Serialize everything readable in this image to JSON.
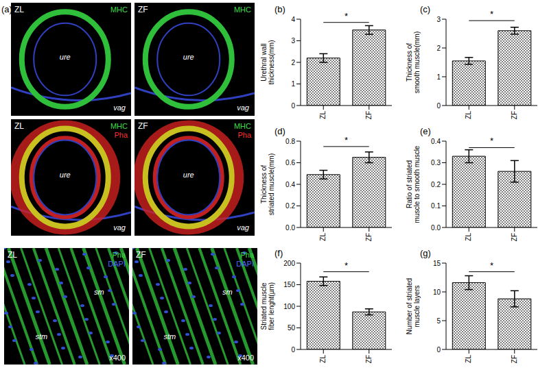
{
  "panel_a": {
    "label": "(a)",
    "images": [
      {
        "label": "ZL",
        "kind": "section",
        "stains": [
          {
            "text": "MHC",
            "color": "#3ddc4a"
          }
        ],
        "marks": [
          "ure",
          "vag"
        ]
      },
      {
        "label": "ZF",
        "kind": "section",
        "stains": [
          {
            "text": "MHC",
            "color": "#3ddc4a"
          }
        ],
        "marks": [
          "ure",
          "vag"
        ]
      },
      {
        "label": "ZL",
        "kind": "section_pha",
        "stains": [
          {
            "text": "MHC",
            "color": "#3ddc4a"
          },
          {
            "text": "Pha",
            "color": "#ff3030"
          }
        ],
        "marks": [
          "ure",
          "vag"
        ]
      },
      {
        "label": "ZF",
        "kind": "section_pha",
        "stains": [
          {
            "text": "MHC",
            "color": "#3ddc4a"
          },
          {
            "text": "Pha",
            "color": "#ff3030"
          }
        ],
        "marks": [
          "ure",
          "vag"
        ]
      },
      {
        "label": "ZL",
        "kind": "fibers",
        "stains": [
          {
            "text": "Pha",
            "color": "#3ddc4a"
          },
          {
            "text": "DAPI",
            "color": "#4a6cff"
          }
        ],
        "marks": [
          "sm",
          "stm",
          "x400"
        ]
      },
      {
        "label": "ZF",
        "kind": "fibers",
        "stains": [
          {
            "text": "Pha",
            "color": "#3ddc4a"
          },
          {
            "text": "DAPI",
            "color": "#4a6cff"
          }
        ],
        "marks": [
          "sm",
          "stm",
          "x400"
        ]
      }
    ]
  },
  "chart_data": [
    {
      "type": "bar",
      "title": "(b)",
      "y_label": "Urethral wall thickness(mm)",
      "categories": [
        "ZL",
        "ZF"
      ],
      "values": [
        2.2,
        3.5
      ],
      "errors": [
        0.2,
        0.2
      ],
      "color": "#808080",
      "ylim": [
        0,
        4
      ],
      "yticks": [
        0,
        1,
        2,
        3,
        4
      ],
      "annotations": [
        {
          "text": "*",
          "from": "ZL",
          "to": "ZF",
          "y": 3.85
        }
      ]
    },
    {
      "type": "bar",
      "title": "(c)",
      "y_label": "Thickness of smooth muscle(mm)",
      "categories": [
        "ZL",
        "ZF"
      ],
      "values": [
        1.55,
        2.6
      ],
      "errors": [
        0.12,
        0.12
      ],
      "color": "#808080",
      "ylim": [
        0,
        3
      ],
      "yticks": [
        0,
        1,
        2,
        3
      ],
      "annotations": [
        {
          "text": "*",
          "from": "ZL",
          "to": "ZF",
          "y": 2.95
        }
      ]
    },
    {
      "type": "bar",
      "title": "(d)",
      "y_label": "Thickness of striated muscle(mm)",
      "categories": [
        "ZL",
        "ZF"
      ],
      "values": [
        0.49,
        0.65
      ],
      "errors": [
        0.04,
        0.05
      ],
      "color": "#808080",
      "ylim": [
        0,
        0.8
      ],
      "yticks": [
        {
          "value": 0,
          "label": "0.0"
        },
        0.2,
        0.4,
        0.6,
        0.8
      ],
      "annotations": [
        {
          "text": "*",
          "from": "ZL",
          "to": "ZF",
          "y": 0.75
        }
      ]
    },
    {
      "type": "bar",
      "title": "(e)",
      "y_label": "Ratio of striated muscle to smooth muscle",
      "categories": [
        "ZL",
        "ZF"
      ],
      "values": [
        0.33,
        0.26
      ],
      "errors": [
        0.03,
        0.05
      ],
      "color": "#808080",
      "ylim": [
        0,
        0.4
      ],
      "yticks": [
        {
          "value": 0,
          "label": "0.0"
        },
        0.1,
        0.2,
        0.3,
        0.4
      ],
      "annotations": [
        {
          "text": "*",
          "from": "ZL",
          "to": "ZF",
          "y": 0.37
        }
      ]
    },
    {
      "type": "bar",
      "title": "(f)",
      "y_label": "Striated muscle fiber lenght(µm)",
      "categories": [
        "ZL",
        "ZF"
      ],
      "values": [
        158,
        87
      ],
      "errors": [
        10,
        7
      ],
      "color": "#808080",
      "ylim": [
        0,
        200
      ],
      "yticks": [
        0,
        50,
        100,
        150,
        200
      ],
      "annotations": [
        {
          "text": "*",
          "from": "ZL",
          "to": "ZF",
          "y": 180
        }
      ]
    },
    {
      "type": "bar",
      "title": "(g)",
      "y_label": "Number of striated muscle layers",
      "categories": [
        "ZL",
        "ZF"
      ],
      "values": [
        11.6,
        8.8
      ],
      "errors": [
        1.2,
        1.4
      ],
      "color": "#808080",
      "ylim": [
        0,
        15
      ],
      "yticks": [
        0,
        5,
        10,
        15
      ],
      "annotations": [
        {
          "text": "*",
          "from": "ZL",
          "to": "ZF",
          "y": 13.5
        }
      ]
    }
  ]
}
